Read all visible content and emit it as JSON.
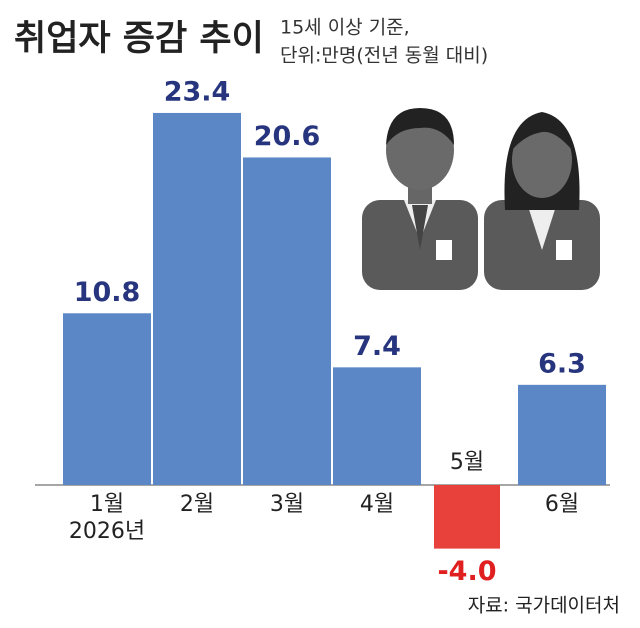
{
  "chart_data": {
    "type": "bar",
    "title": "취업자 증감 추이",
    "subtitle": [
      "15세 이상 기준,",
      "단위:만명(전년 동월 대비)"
    ],
    "categories": [
      "1월",
      "2월",
      "3월",
      "4월",
      "5월",
      "6월"
    ],
    "year_label": "2026년",
    "values": [
      10.8,
      23.4,
      20.6,
      7.4,
      -4.0,
      6.3
    ],
    "value_labels": [
      "10.8",
      "23.4",
      "20.6",
      "7.4",
      "-4.0",
      "6.3"
    ],
    "color": "#5b87c6",
    "negative_color": "#e8403a",
    "source": "자료: 국가데이터처"
  }
}
